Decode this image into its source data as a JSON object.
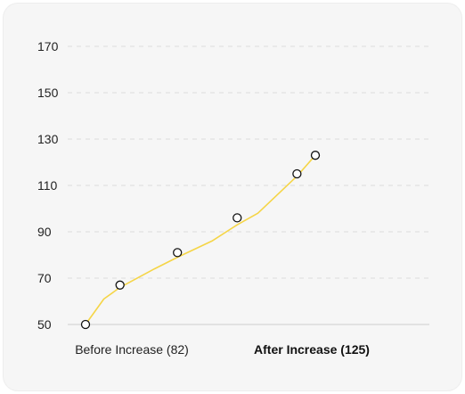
{
  "chart_data": {
    "type": "line",
    "categories": [
      "Before Increase (82)",
      "After Increase (125)"
    ],
    "emphasized_category": 1,
    "yticks": [
      50,
      70,
      90,
      110,
      130,
      150,
      170
    ],
    "ylim": [
      50,
      170
    ],
    "grid": true,
    "series": [
      {
        "points": [
          {
            "x": 0.0,
            "y": 50
          },
          {
            "x": 0.15,
            "y": 67
          },
          {
            "x": 0.4,
            "y": 81
          },
          {
            "x": 0.66,
            "y": 96
          },
          {
            "x": 0.92,
            "y": 115
          },
          {
            "x": 1.0,
            "y": 123
          }
        ],
        "line": [
          {
            "x": 0.0,
            "y": 50
          },
          {
            "x": 0.08,
            "y": 61
          },
          {
            "x": 0.15,
            "y": 66
          },
          {
            "x": 0.3,
            "y": 74
          },
          {
            "x": 0.4,
            "y": 79
          },
          {
            "x": 0.55,
            "y": 86
          },
          {
            "x": 0.66,
            "y": 93
          },
          {
            "x": 0.75,
            "y": 98
          },
          {
            "x": 0.92,
            "y": 114
          },
          {
            "x": 1.0,
            "y": 123
          }
        ]
      }
    ],
    "colors": {
      "line": "#f5d547",
      "marker_fill": "#ffffff",
      "marker_stroke": "#111111",
      "grid": "#dcdcdc",
      "axis": "#cfcfcf"
    }
  }
}
